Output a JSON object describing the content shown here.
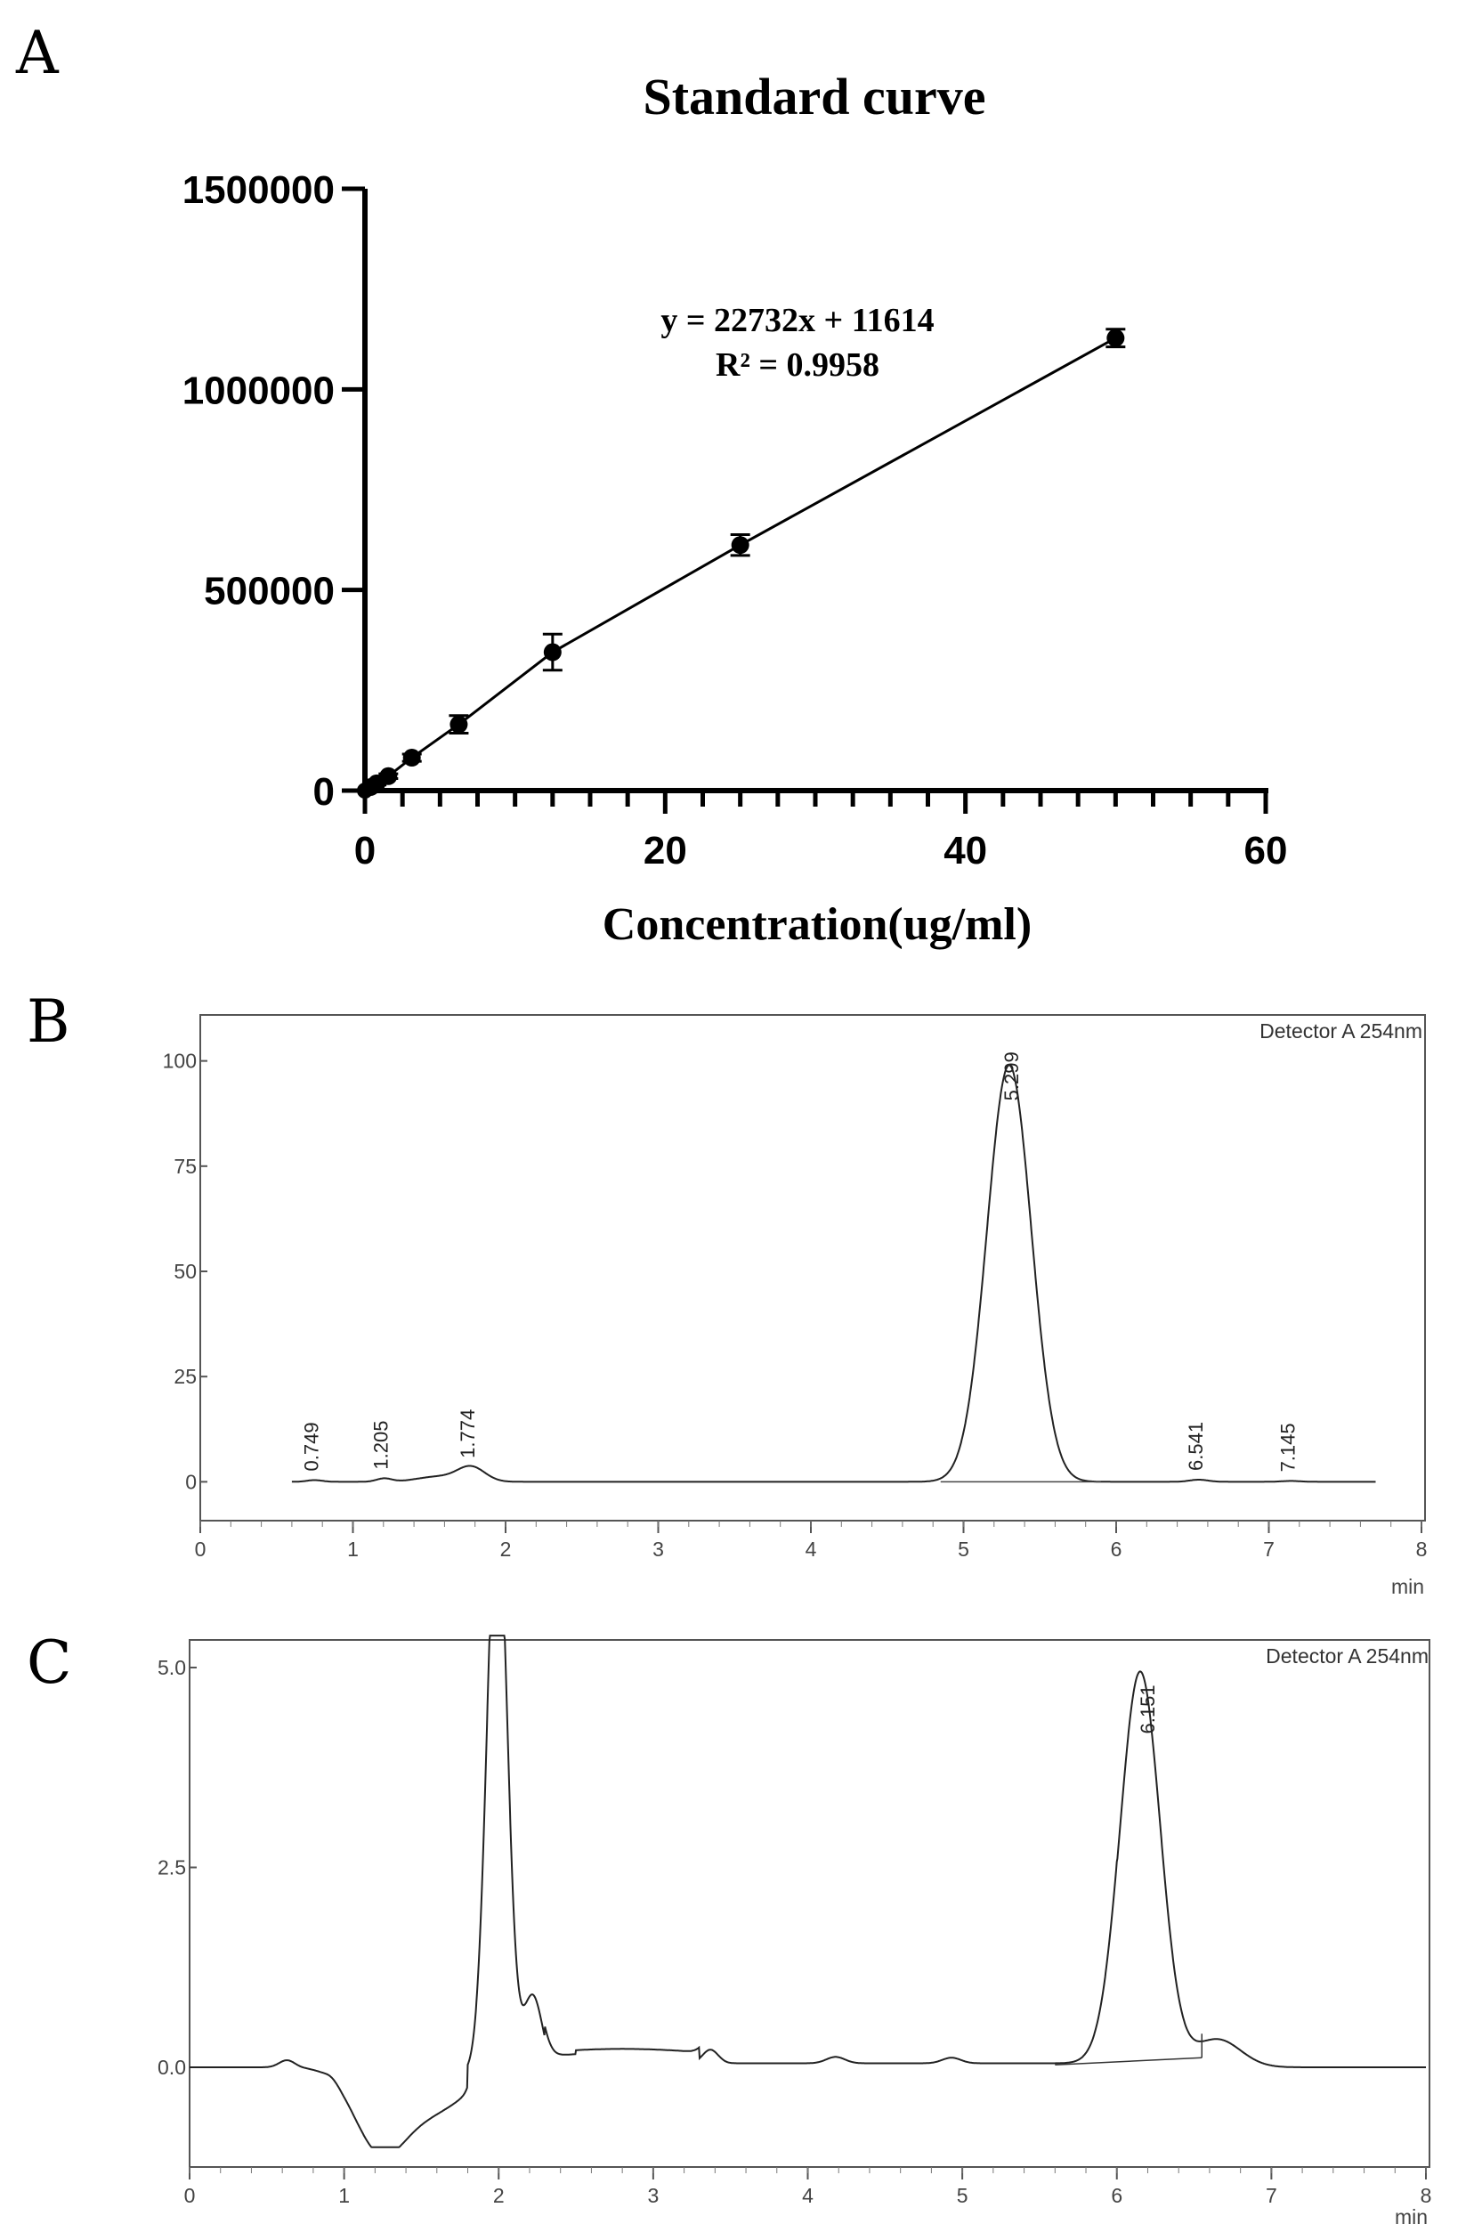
{
  "panels": {
    "a": "A",
    "b": "B",
    "c": "C"
  },
  "chart_data": [
    {
      "type": "scatter",
      "title": "Standard curve",
      "xlabel": "Concentration(ug/ml)",
      "ylabel": "",
      "xlim": [
        0,
        60
      ],
      "ylim": [
        0,
        1500000
      ],
      "xticks": [
        "0",
        "20",
        "40",
        "60"
      ],
      "yticks": [
        "0",
        "500000",
        "1000000",
        "1500000"
      ],
      "x": [
        0.39,
        0.78,
        1.56,
        3.125,
        6.25,
        12.5,
        25,
        50
      ],
      "y": [
        9000,
        18000,
        36000,
        82000,
        165000,
        345000,
        612000,
        1128000
      ],
      "err": [
        3000,
        4000,
        6000,
        9000,
        22000,
        45000,
        26000,
        22000
      ],
      "annotations": [
        "y = 22732x + 11614",
        "R² = 0.9958"
      ],
      "grid": false,
      "line": "connected"
    },
    {
      "type": "line",
      "title": "",
      "xlabel": "min",
      "ylabel": "",
      "xlim": [
        0,
        8
      ],
      "ylim": [
        -5,
        105
      ],
      "xticks": [
        "0",
        "1",
        "2",
        "3",
        "4",
        "5",
        "6",
        "7",
        "8"
      ],
      "yticks": [
        "0",
        "25",
        "50",
        "75",
        "100"
      ],
      "legend": "Detector A 254nm",
      "peaks": [
        {
          "rt": 0.749,
          "label": "0.749",
          "height": 0.4
        },
        {
          "rt": 1.205,
          "label": "1.205",
          "height": 0.8
        },
        {
          "rt": 1.774,
          "label": "1.774",
          "height": 3.5
        },
        {
          "rt": 5.299,
          "label": "5.299",
          "height": 99
        },
        {
          "rt": 6.541,
          "label": "6.541",
          "height": 0.5
        },
        {
          "rt": 7.145,
          "label": "7.145",
          "height": 0.2
        }
      ],
      "trace_range": [
        0.6,
        7.7
      ]
    },
    {
      "type": "line",
      "title": "",
      "xlabel": "min",
      "ylabel": "",
      "xlim": [
        0,
        8
      ],
      "ylim": [
        -1.0,
        5.4
      ],
      "xticks": [
        "0",
        "1",
        "2",
        "3",
        "4",
        "5",
        "6",
        "7",
        "8"
      ],
      "yticks": [
        "0.0",
        "2.5",
        "5.0"
      ],
      "legend": "Detector A 254nm",
      "peaks": [
        {
          "rt": 6.151,
          "label": "6.151",
          "height": 4.95
        }
      ],
      "trace_range": [
        0,
        8
      ]
    }
  ]
}
